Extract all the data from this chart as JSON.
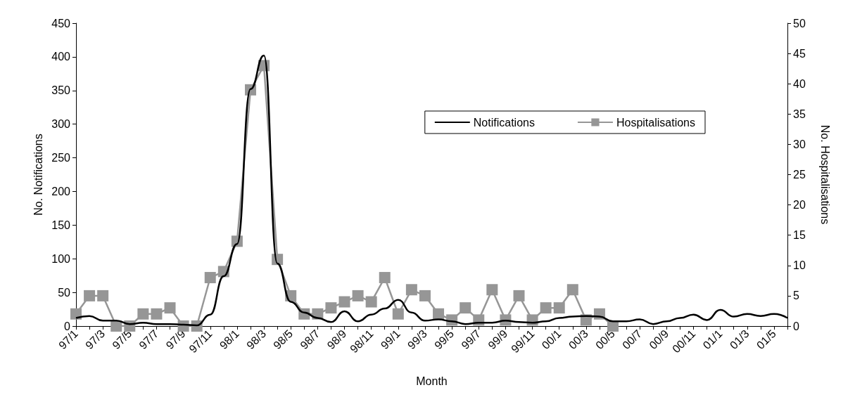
{
  "chart_data": {
    "type": "line",
    "xlabel": "Month",
    "ylabel": "No. Notifications",
    "y2label": "No. Hospitalisations",
    "categories": [
      "97/1",
      null,
      "97/3",
      null,
      "97/5",
      null,
      "97/7",
      null,
      "97/9",
      null,
      "97/11",
      null,
      "98/1",
      null,
      "98/3",
      null,
      "98/5",
      null,
      "98/7",
      null,
      "98/9",
      null,
      "98/11",
      null,
      "99/1",
      null,
      "99/3",
      null,
      "99/5",
      null,
      "99/7",
      null,
      "99/9",
      null,
      "99/11",
      null,
      "00/1",
      null,
      "00/3",
      null,
      "00/5",
      null,
      "00/7",
      null,
      "00/9",
      null,
      "00/11",
      null,
      "01/1",
      null,
      "01/3",
      null,
      "01/5",
      null
    ],
    "series": [
      {
        "name": "Notifications",
        "color": "#000000",
        "marker": "none",
        "values": [
          12,
          15,
          8,
          8,
          3,
          5,
          3,
          3,
          2,
          1,
          17,
          74,
          122,
          352,
          402,
          93,
          36,
          20,
          12,
          6,
          22,
          7,
          17,
          26,
          39,
          20,
          8,
          10,
          7,
          3,
          5,
          5,
          8,
          6,
          5,
          7,
          12,
          14,
          15,
          14,
          7,
          7,
          10,
          3,
          7,
          12,
          17,
          9,
          24,
          14,
          18,
          15,
          18,
          12
        ]
      },
      {
        "name": "Hospitalisations",
        "color": "#969696",
        "marker": "square",
        "axis": "y2",
        "values": [
          2,
          5,
          5,
          0,
          0,
          2,
          2,
          3,
          0,
          0,
          8,
          9,
          14,
          39,
          43,
          11,
          5,
          2,
          2,
          3,
          4,
          5,
          4,
          8,
          2,
          6,
          5,
          2,
          1,
          3,
          1,
          6,
          1,
          5,
          1,
          3,
          3,
          6,
          1,
          2,
          0,
          null,
          null,
          null,
          null,
          null,
          null,
          null,
          null,
          null,
          null,
          null,
          null,
          null
        ]
      }
    ],
    "ylim": [
      0,
      450
    ],
    "yticks": [
      0,
      50,
      100,
      150,
      200,
      250,
      300,
      350,
      400,
      450
    ],
    "y2lim": [
      0,
      50
    ],
    "y2ticks": [
      0,
      5,
      10,
      15,
      20,
      25,
      30,
      35,
      40,
      45,
      50
    ],
    "grid": false,
    "legend": "top right"
  }
}
